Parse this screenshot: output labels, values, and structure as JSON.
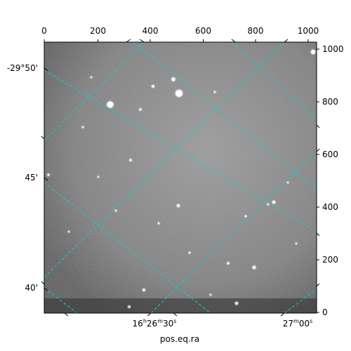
{
  "figure": {
    "xlabel": "pos.eq.ra",
    "pixel_axes": {
      "top_ticks": [
        "0",
        "200",
        "400",
        "600",
        "800",
        "1000"
      ],
      "right_ticks": [
        "0",
        "200",
        "400",
        "600",
        "800",
        "1000"
      ]
    },
    "world_axes": {
      "dec_ticks": [
        "-29°50'",
        "45'",
        "40'"
      ],
      "ra_ticks": [
        {
          "h": "16",
          "m": "26",
          "s": "30",
          "label": "16h26m30s"
        },
        {
          "m": "27",
          "s": "00",
          "label": "27m00s"
        }
      ]
    },
    "grid_color": "#00d6d6",
    "image_tone": "grayscale"
  }
}
